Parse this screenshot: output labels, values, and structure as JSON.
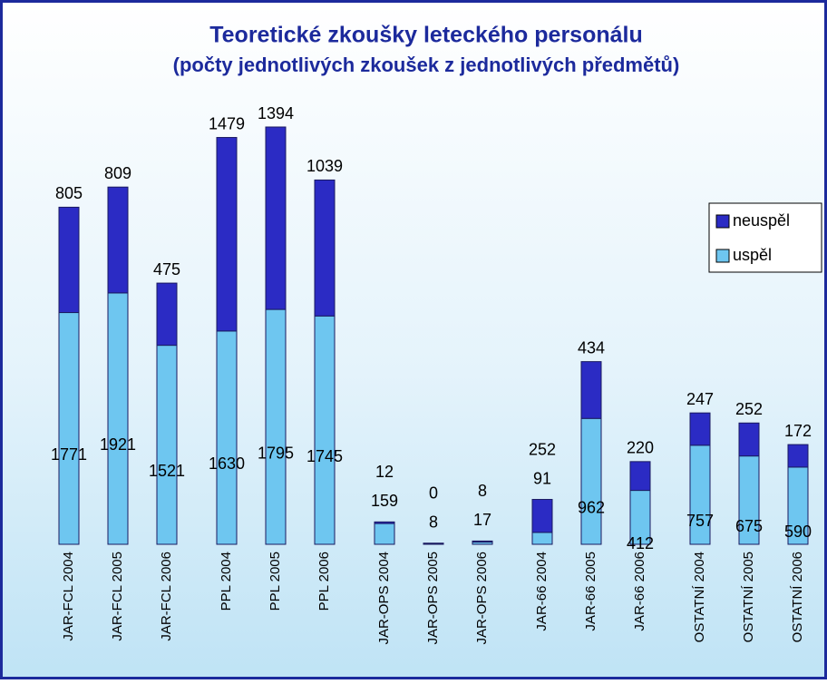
{
  "chart_data": {
    "type": "stacked_bar",
    "title": "Teoretické zkoušky leteckého personálu",
    "subtitle": "(počty jednotlivých zkoušek z jednotlivých předmětů)",
    "categories": [
      "JAR-FCL 2004",
      "JAR-FCL 2005",
      "JAR-FCL 2006",
      "PPL 2004",
      "PPL 2005",
      "PPL 2006",
      "JAR-OPS 2004",
      "JAR-OPS 2005",
      "JAR-OPS 2006",
      "JAR-66 2004",
      "JAR-66 2005",
      "JAR-66 2006",
      "OSTATNÍ 2004",
      "OSTATNÍ 2005",
      "OSTATNÍ 2006"
    ],
    "series": [
      {
        "name": "uspěl",
        "color": "#6ec6f0",
        "values": [
          1771,
          1921,
          1521,
          1630,
          1795,
          1745,
          159,
          8,
          17,
          91,
          962,
          412,
          757,
          675,
          590
        ]
      },
      {
        "name": "neuspěl",
        "color": "#2b2bc4",
        "values": [
          805,
          809,
          475,
          1479,
          1394,
          1039,
          12,
          0,
          8,
          252,
          434,
          220,
          247,
          252,
          172
        ]
      }
    ],
    "legend": "right"
  }
}
